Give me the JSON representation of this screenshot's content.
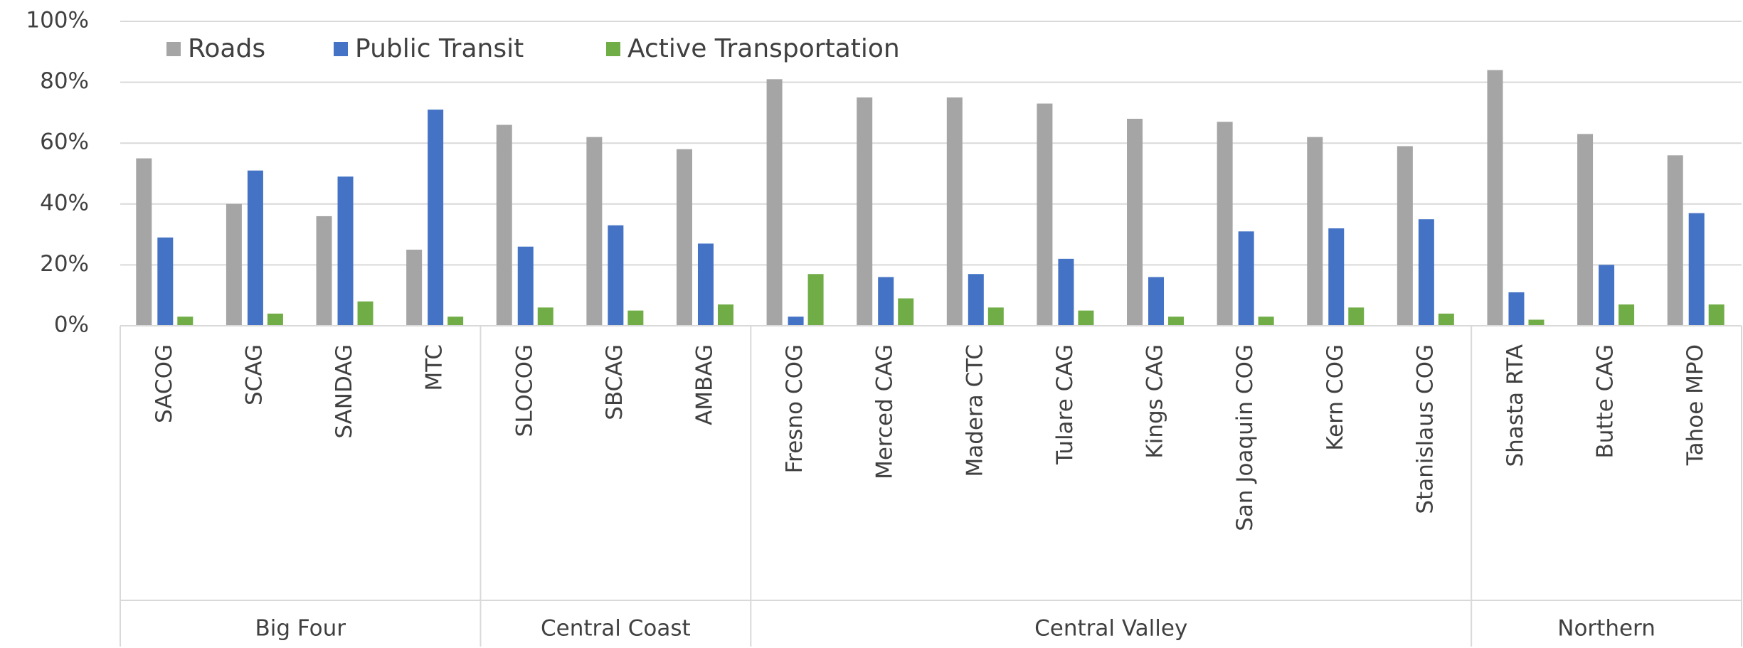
{
  "chart_data": {
    "type": "bar",
    "groups": [
      {
        "name": "Big Four",
        "categories": [
          "SACOG",
          "SCAG",
          "SANDAG",
          "MTC"
        ]
      },
      {
        "name": "Central Coast",
        "categories": [
          "SLOCOG",
          "SBCAG",
          "AMBAG"
        ]
      },
      {
        "name": "Central Valley",
        "categories": [
          "Fresno COG",
          "Merced CAG",
          "Madera CTC",
          "Tulare CAG",
          "Kings CAG",
          "San Joaquin COG",
          "Kern COG",
          "Stanislaus COG"
        ]
      },
      {
        "name": "Northern",
        "categories": [
          "Shasta RTA",
          "Butte CAG",
          "Tahoe MPO"
        ]
      }
    ],
    "series": [
      {
        "name": "Roads",
        "color": "#a5a5a5",
        "values": [
          55,
          40,
          36,
          25,
          66,
          62,
          58,
          81,
          75,
          75,
          73,
          68,
          67,
          62,
          59,
          84,
          63,
          56
        ]
      },
      {
        "name": "Public Transit",
        "color": "#4472c4",
        "values": [
          29,
          51,
          49,
          71,
          26,
          33,
          27,
          3,
          16,
          17,
          22,
          16,
          31,
          32,
          35,
          11,
          20,
          37
        ]
      },
      {
        "name": "Active Transportation",
        "color": "#70ad47",
        "values": [
          3,
          4,
          8,
          3,
          6,
          5,
          7,
          17,
          9,
          6,
          5,
          3,
          3,
          6,
          4,
          2,
          7,
          7
        ]
      }
    ],
    "ylim": [
      0,
      100
    ],
    "yticks": [
      {
        "value": 0,
        "label": "0%"
      },
      {
        "value": 20,
        "label": "20%"
      },
      {
        "value": 40,
        "label": "40%"
      },
      {
        "value": 60,
        "label": "60%"
      },
      {
        "value": 80,
        "label": "80%"
      },
      {
        "value": 100,
        "label": "100%"
      }
    ],
    "grid": true,
    "legend": "top-left"
  }
}
